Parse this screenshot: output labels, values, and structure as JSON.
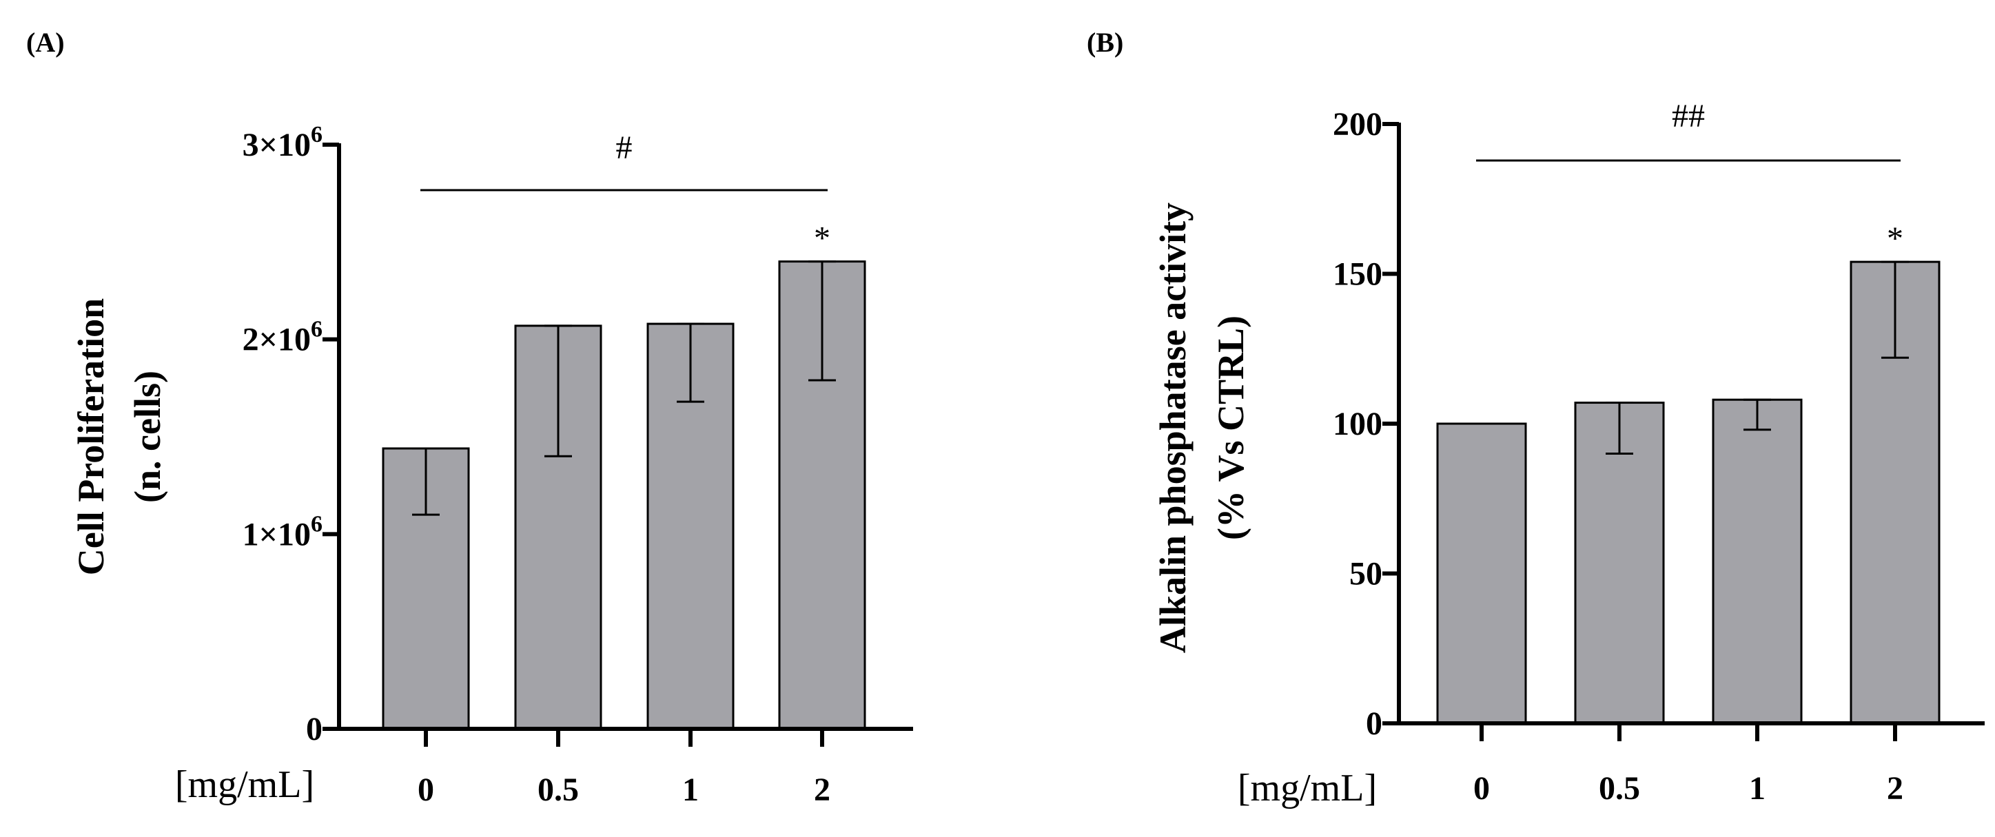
{
  "chart_data": [
    {
      "panel": "(A)",
      "type": "bar",
      "categories": [
        "0",
        "0.5",
        "1",
        "2"
      ],
      "values": [
        1440000,
        2070000,
        2080000,
        2400000
      ],
      "errors": [
        [
          1100000,
          1440000
        ],
        [
          1400000,
          2070000
        ],
        [
          1680000,
          2080000
        ],
        [
          1790000,
          2400000
        ]
      ],
      "annotations": [
        "",
        "",
        "",
        "*"
      ],
      "significance_bar": {
        "label": "#",
        "from": "0",
        "to": "2"
      },
      "xlabel": "[mg/mL]",
      "ylabel": [
        "Cell Proliferation",
        "(n. cells)"
      ],
      "ylim": [
        0,
        3000000
      ],
      "yticks": [
        {
          "value": 0,
          "label": "0",
          "mant": "",
          "exp": ""
        },
        {
          "value": 1000000,
          "label": "",
          "mant": "1×10",
          "exp": "6"
        },
        {
          "value": 2000000,
          "label": "",
          "mant": "2×10",
          "exp": "6"
        },
        {
          "value": 3000000,
          "label": "",
          "mant": "3×10",
          "exp": "6"
        }
      ],
      "bar_color": "#a3a3a8"
    },
    {
      "panel": "(B)",
      "type": "bar",
      "categories": [
        "0",
        "0.5",
        "1",
        "2"
      ],
      "values": [
        100,
        107,
        108,
        154
      ],
      "errors": [
        [
          100,
          100
        ],
        [
          90,
          107
        ],
        [
          98,
          108
        ],
        [
          122,
          154
        ]
      ],
      "annotations": [
        "",
        "",
        "",
        "*"
      ],
      "significance_bar": {
        "label": "##",
        "from": "0",
        "to": "2"
      },
      "xlabel": "[mg/mL]",
      "ylabel": [
        "Alkalin phosphatase activity",
        "(% Vs CTRL)"
      ],
      "ylim": [
        0,
        200
      ],
      "yticks": [
        {
          "value": 0,
          "label": "0"
        },
        {
          "value": 50,
          "label": "50"
        },
        {
          "value": 100,
          "label": "100"
        },
        {
          "value": 150,
          "label": "150"
        },
        {
          "value": 200,
          "label": "200"
        }
      ],
      "bar_color": "#a3a3a8"
    }
  ]
}
